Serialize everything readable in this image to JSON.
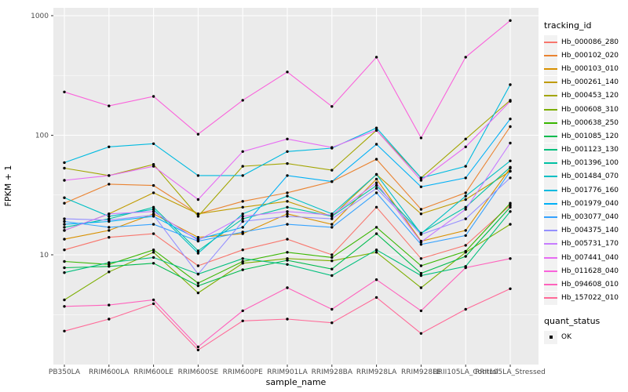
{
  "chart_data": {
    "type": "line",
    "title": "",
    "xlabel": "sample_name",
    "ylabel": "FPKM + 1",
    "y_scale": "log10",
    "y_ticks": [
      10,
      100,
      1000
    ],
    "y_minor_ticks": [
      3.162,
      31.62,
      316.2
    ],
    "y_range": [
      1.2,
      1400
    ],
    "grid": true,
    "legend_position": "right",
    "panel_bg": "#EBEBEB",
    "grid_color": "#FFFFFF",
    "tick_label_color": "#4D4D4D",
    "point_color": "#000000",
    "categories": [
      "PB350LA",
      "RRIM600LA",
      "RRIM600LE",
      "RRIM600SE",
      "RRIM600PE",
      "RRIM901LA",
      "RRIM928BA",
      "RRIM928LA",
      "RRIM928LE",
      "RRII105LA_Control",
      "RRII105LA_Stressed"
    ],
    "series": [
      {
        "name": "Hb_000086_280",
        "color": "#F8766D",
        "values": [
          11,
          14,
          15,
          8.1,
          11,
          13.5,
          10,
          25,
          9.3,
          12,
          26
        ]
      },
      {
        "name": "Hb_000102_020",
        "color": "#EA8331",
        "values": [
          27,
          39,
          38,
          22,
          28,
          33,
          41,
          63,
          24,
          33,
          118
        ]
      },
      {
        "name": "Hb_000103_010",
        "color": "#D89000",
        "values": [
          13.5,
          16,
          22,
          14,
          15,
          22,
          18,
          43,
          13,
          16,
          53
        ]
      },
      {
        "name": "Hb_000261_140",
        "color": "#C09B00",
        "values": [
          16,
          22,
          33,
          22,
          25,
          28,
          21,
          47,
          22,
          29,
          50
        ]
      },
      {
        "name": "Hb_000453_120",
        "color": "#A3A500",
        "values": [
          53,
          46,
          57,
          21,
          55,
          58,
          51,
          110,
          44,
          93,
          196
        ]
      },
      {
        "name": "Hb_000608_310",
        "color": "#7CAE00",
        "values": [
          4.2,
          7.2,
          10.5,
          4.8,
          8.5,
          9.3,
          8.9,
          10.5,
          5.3,
          10.5,
          18
        ]
      },
      {
        "name": "Hb_000638_250",
        "color": "#39B600",
        "values": [
          8.8,
          8.3,
          11,
          5.8,
          8.8,
          10.5,
          9.5,
          17,
          8.1,
          10.7,
          27
        ]
      },
      {
        "name": "Hb_001085_120",
        "color": "#00BB4E",
        "values": [
          7.8,
          8,
          8.5,
          5.5,
          7.5,
          9,
          7.6,
          15,
          7,
          9.7,
          25
        ]
      },
      {
        "name": "Hb_001123_130",
        "color": "#00BF7D",
        "values": [
          7.1,
          8.6,
          9.5,
          6.9,
          9.3,
          8.3,
          6.7,
          11,
          6.7,
          8,
          23
        ]
      },
      {
        "name": "Hb_001396_100",
        "color": "#00C1A3",
        "values": [
          17,
          20,
          25,
          10.8,
          20,
          25,
          21,
          38,
          15.2,
          25,
          54
        ]
      },
      {
        "name": "Hb_001484_070",
        "color": "#00BFC4",
        "values": [
          30,
          21,
          24,
          10.3,
          22,
          31,
          22,
          47,
          15,
          31,
          61
        ]
      },
      {
        "name": "Hb_001776_160",
        "color": "#00BAE0",
        "values": [
          59,
          80,
          85,
          46,
          46,
          73,
          78,
          115,
          44,
          55,
          265
        ]
      },
      {
        "name": "Hb_001979_040",
        "color": "#00B0F6",
        "values": [
          18,
          19,
          21,
          13.5,
          17,
          46,
          41,
          84,
          37,
          44,
          137
        ]
      },
      {
        "name": "Hb_003077_040",
        "color": "#35A2FF",
        "values": [
          19,
          17,
          18,
          13,
          15.5,
          18,
          17,
          33,
          12.2,
          14.5,
          50
        ]
      },
      {
        "name": "Hb_004375_140",
        "color": "#9590FF",
        "values": [
          20,
          19.5,
          21.5,
          6.9,
          19,
          21,
          20,
          36,
          14.8,
          20,
          44
        ]
      },
      {
        "name": "Hb_005731_170",
        "color": "#C77CFF",
        "values": [
          16,
          22,
          23,
          13.2,
          21,
          23,
          21.5,
          40,
          12.8,
          24,
          86
        ]
      },
      {
        "name": "Hb_007441_040",
        "color": "#E76BF3",
        "values": [
          42,
          46,
          55,
          29,
          73,
          93,
          79,
          110,
          42,
          80,
          192
        ]
      },
      {
        "name": "Hb_011628_040",
        "color": "#FA62DB",
        "values": [
          230,
          176,
          211,
          102,
          196,
          338,
          174,
          450,
          95,
          450,
          910
        ]
      },
      {
        "name": "Hb_094608_010",
        "color": "#FF62BC",
        "values": [
          3.7,
          3.8,
          4.2,
          1.7,
          3.4,
          5.3,
          3.5,
          6.2,
          3.4,
          7.8,
          9.3
        ]
      },
      {
        "name": "Hb_157022_010",
        "color": "#FF6A98",
        "values": [
          2.3,
          2.9,
          3.9,
          1.6,
          2.8,
          2.9,
          2.7,
          4.4,
          2.2,
          3.5,
          5.2
        ]
      }
    ],
    "legends": {
      "lines_title": "tracking_id",
      "points_title": "quant_status",
      "point_label": "OK"
    }
  }
}
